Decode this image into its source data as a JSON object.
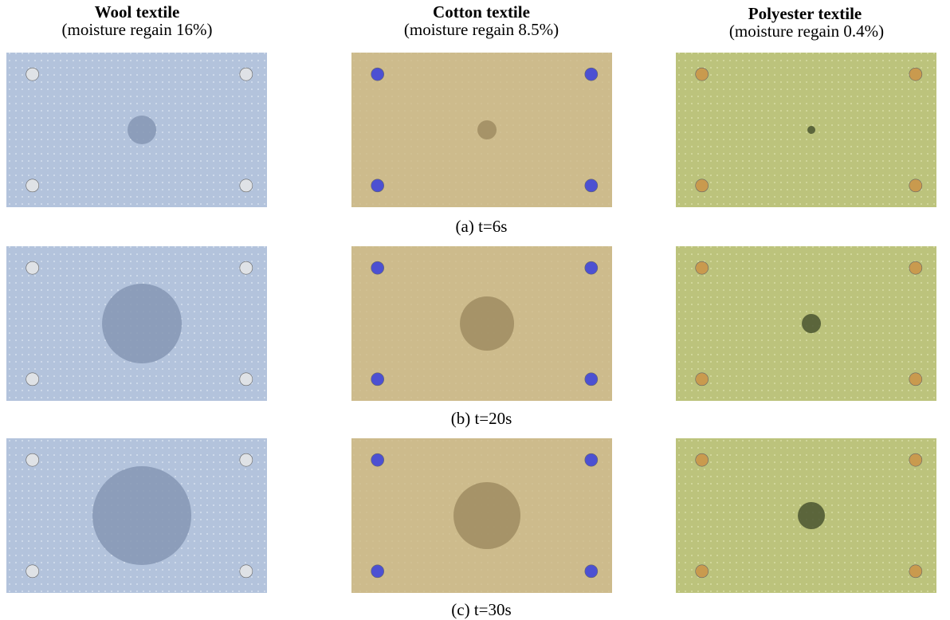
{
  "columns": [
    {
      "title": "Wool textile",
      "subtitle": "(moisture regain 16%)"
    },
    {
      "title": "Cotton textile",
      "subtitle": "(moisture regain 8.5%)"
    },
    {
      "title": "Polyester textile",
      "subtitle": "(moisture regain 0.4%)"
    }
  ],
  "rows": [
    {
      "caption": "(a) t=6s"
    },
    {
      "caption": "(b) t=20s"
    },
    {
      "caption": "(c) t=30s"
    }
  ]
}
